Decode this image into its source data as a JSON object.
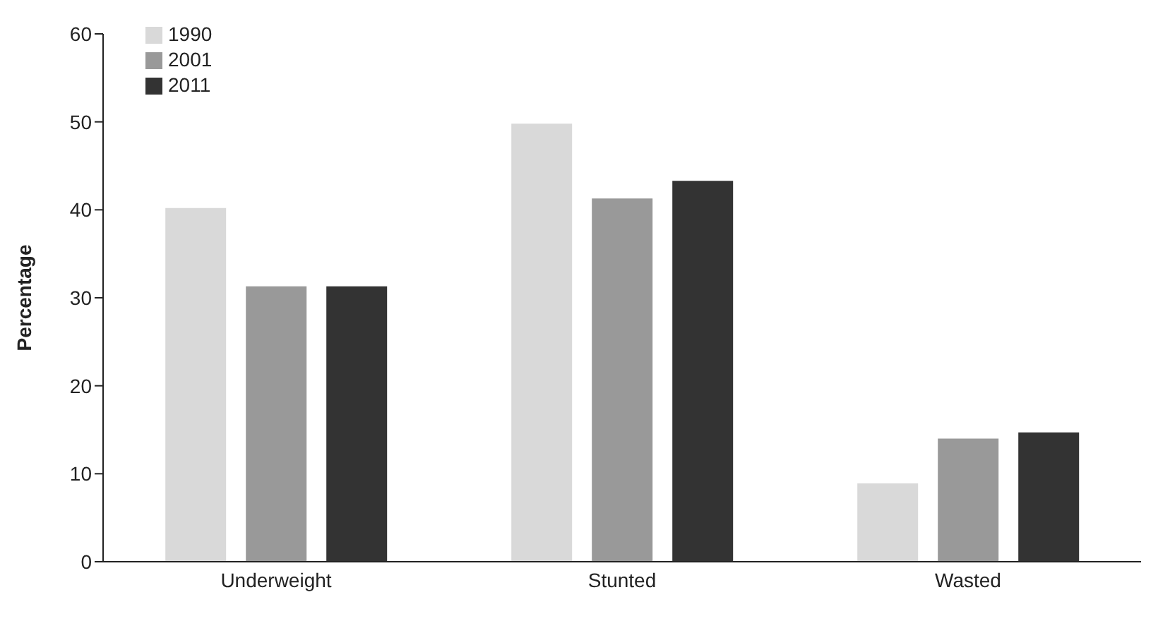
{
  "chart_data": {
    "type": "bar",
    "ylabel": "Percentage",
    "categories": [
      "Underweight",
      "Stunted",
      "Wasted"
    ],
    "series": [
      {
        "name": "1990",
        "color": "#d9d9d9",
        "values": [
          40.2,
          49.8,
          8.9
        ]
      },
      {
        "name": "2001",
        "color": "#999999",
        "values": [
          31.3,
          41.3,
          14.0
        ]
      },
      {
        "name": "2011",
        "color": "#333333",
        "values": [
          31.3,
          43.3,
          14.7
        ]
      }
    ],
    "ylim": [
      0,
      60
    ],
    "yticks": [
      0,
      10,
      20,
      30,
      40,
      50,
      60
    ],
    "grid": false,
    "legend": "top left"
  }
}
